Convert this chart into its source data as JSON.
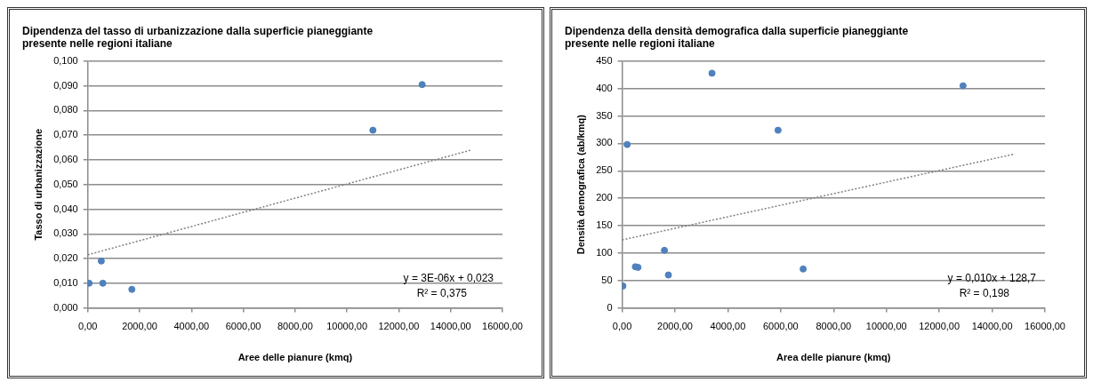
{
  "chart_data": [
    {
      "type": "scatter",
      "title": "Dipendenza del tasso di urbanizzazione dalla superficie pianeggiante\npresente nelle regioni italiane",
      "xlabel": "Aree delle pianure (kmq)",
      "ylabel": "Tasso di urbanizzazione",
      "series": [
        {
          "type": "scatter",
          "color": "#4f81bd",
          "x": [
            50,
            520,
            580,
            1700,
            11000,
            12900
          ],
          "values": [
            0.01,
            0.019,
            0.01,
            0.0075,
            0.072,
            0.0905
          ]
        },
        {
          "type": "line",
          "color": "#808080",
          "line_style": "dotted",
          "marker": "none",
          "x": [
            0,
            14800
          ],
          "values": [
            0.0215,
            0.064
          ]
        }
      ],
      "marker": "circle",
      "xlim": [
        0,
        16000
      ],
      "ylim": [
        0,
        0.1
      ],
      "xticks": [
        {
          "value": 0,
          "label": "0,00"
        },
        {
          "value": 2000,
          "label": "2000,00"
        },
        {
          "value": 4000,
          "label": "4000,00"
        },
        {
          "value": 6000,
          "label": "6000,00"
        },
        {
          "value": 8000,
          "label": "8000,00"
        },
        {
          "value": 10000,
          "label": "10000,00"
        },
        {
          "value": 12000,
          "label": "12000,00"
        },
        {
          "value": 14000,
          "label": "14000,00"
        },
        {
          "value": 16000,
          "label": "16000,00"
        }
      ],
      "yticks": [
        {
          "value": 0,
          "label": "0,000"
        },
        {
          "value": 0.01,
          "label": "0,010"
        },
        {
          "value": 0.02,
          "label": "0,020"
        },
        {
          "value": 0.03,
          "label": "0,030"
        },
        {
          "value": 0.04,
          "label": "0,040"
        },
        {
          "value": 0.05,
          "label": "0,050"
        },
        {
          "value": 0.06,
          "label": "0,060"
        },
        {
          "value": 0.07,
          "label": "0,070"
        },
        {
          "value": 0.08,
          "label": "0,080"
        },
        {
          "value": 0.09,
          "label": "0,090"
        },
        {
          "value": 0.1,
          "label": "0,100"
        }
      ],
      "grid": "y",
      "legend": false,
      "annotations": [
        "y = 3E-06x + 0,023",
        "R² = 0,375"
      ]
    },
    {
      "type": "scatter",
      "title": "Dipendenza della densità demografica dalla superficie pianeggiante\npresente nelle regioni italiane",
      "xlabel": "Area delle pianure (kmq)",
      "ylabel": "Densità demografica (ab/kmq)",
      "series": [
        {
          "type": "scatter",
          "color": "#4f81bd",
          "x": [
            30,
            190,
            500,
            600,
            1600,
            1750,
            3400,
            5900,
            6850,
            12900
          ],
          "values": [
            40,
            298,
            75,
            74,
            105,
            60,
            428,
            324,
            71,
            405
          ]
        },
        {
          "type": "line",
          "color": "#808080",
          "line_style": "dotted",
          "marker": "none",
          "x": [
            0,
            14800
          ],
          "values": [
            124,
            280
          ]
        }
      ],
      "marker": "circle",
      "xlim": [
        0,
        16000
      ],
      "ylim": [
        0,
        450
      ],
      "xticks": [
        {
          "value": 0,
          "label": "0,00"
        },
        {
          "value": 2000,
          "label": "2000,00"
        },
        {
          "value": 4000,
          "label": "4000,00"
        },
        {
          "value": 6000,
          "label": "6000,00"
        },
        {
          "value": 8000,
          "label": "8000,00"
        },
        {
          "value": 10000,
          "label": "10000,00"
        },
        {
          "value": 12000,
          "label": "12000,00"
        },
        {
          "value": 14000,
          "label": "14000,00"
        },
        {
          "value": 16000,
          "label": "16000,00"
        }
      ],
      "yticks": [
        0,
        50,
        100,
        150,
        200,
        250,
        300,
        350,
        400,
        450
      ],
      "grid": "y",
      "legend": false,
      "annotations": [
        "y = 0,010x + 128,7",
        "R² = 0,198"
      ]
    }
  ]
}
